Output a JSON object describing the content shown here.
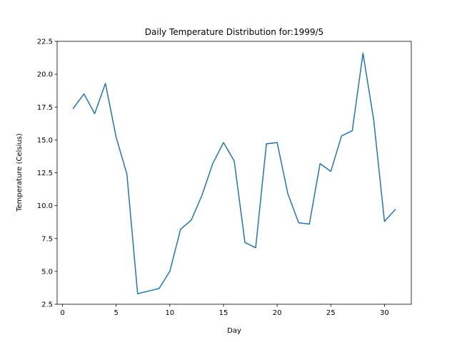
{
  "chart_data": {
    "type": "line",
    "title": "Daily Temperature Distribution for:1999/5",
    "xlabel": "Day",
    "ylabel": "Temperature (Celsius)",
    "xlim": [
      -0.5,
      32.5
    ],
    "ylim": [
      2.5,
      22.5
    ],
    "xticks": [
      0,
      5,
      10,
      15,
      20,
      25,
      30
    ],
    "yticks": [
      2.5,
      5.0,
      7.5,
      10.0,
      12.5,
      15.0,
      17.5,
      20.0,
      22.5
    ],
    "xtick_labels": [
      "0",
      "5",
      "10",
      "15",
      "20",
      "25",
      "30"
    ],
    "ytick_labels": [
      "2.5",
      "5.0",
      "7.5",
      "10.0",
      "12.5",
      "15.0",
      "17.5",
      "20.0",
      "22.5"
    ],
    "grid": false,
    "line_color": "#1f77b4",
    "series": [
      {
        "x": [
          1,
          2,
          3,
          4,
          5,
          6,
          7,
          8,
          9,
          10,
          11,
          12,
          13,
          14,
          15,
          16,
          17,
          18,
          19,
          20,
          21,
          22,
          23,
          24,
          25,
          26,
          27,
          28,
          29,
          30,
          31
        ],
        "values": [
          17.4,
          18.5,
          17.0,
          19.3,
          15.2,
          12.4,
          3.3,
          3.5,
          3.7,
          5.0,
          8.2,
          8.9,
          10.8,
          13.2,
          14.8,
          13.4,
          7.2,
          6.8,
          14.7,
          14.8,
          10.9,
          8.7,
          8.6,
          13.2,
          12.6,
          15.3,
          15.7,
          21.6,
          16.5,
          8.8,
          9.7
        ]
      }
    ]
  }
}
